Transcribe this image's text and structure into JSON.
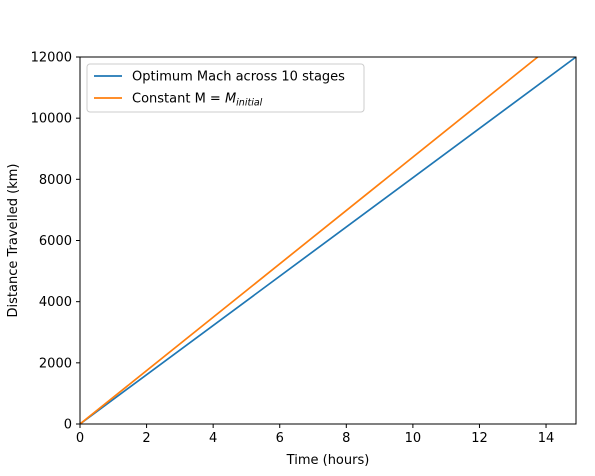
{
  "chart_data": {
    "type": "line",
    "title": "",
    "xlabel": "Time (hours)",
    "ylabel": "Distance Travelled (km)",
    "xlim": [
      0,
      14.9
    ],
    "ylim": [
      0,
      12000
    ],
    "xticks": [
      0,
      2,
      4,
      6,
      8,
      10,
      12,
      14
    ],
    "yticks": [
      0,
      2000,
      4000,
      6000,
      8000,
      10000,
      12000
    ],
    "grid": false,
    "legend_position": "upper-left",
    "series": [
      {
        "name": "Optimum Mach across 10 stages",
        "color": "#1f77b4",
        "x": [
          0,
          14.9
        ],
        "y": [
          0,
          12000
        ]
      },
      {
        "name": "Constant M = M_initial",
        "color": "#ff7f0e",
        "x": [
          0,
          13.75
        ],
        "y": [
          0,
          12000
        ]
      }
    ]
  },
  "legend": {
    "series_1_label": "Optimum Mach across 10 stages",
    "series_2_prefix": "Constant M = ",
    "series_2_main": "M",
    "series_2_sub": "initial"
  }
}
